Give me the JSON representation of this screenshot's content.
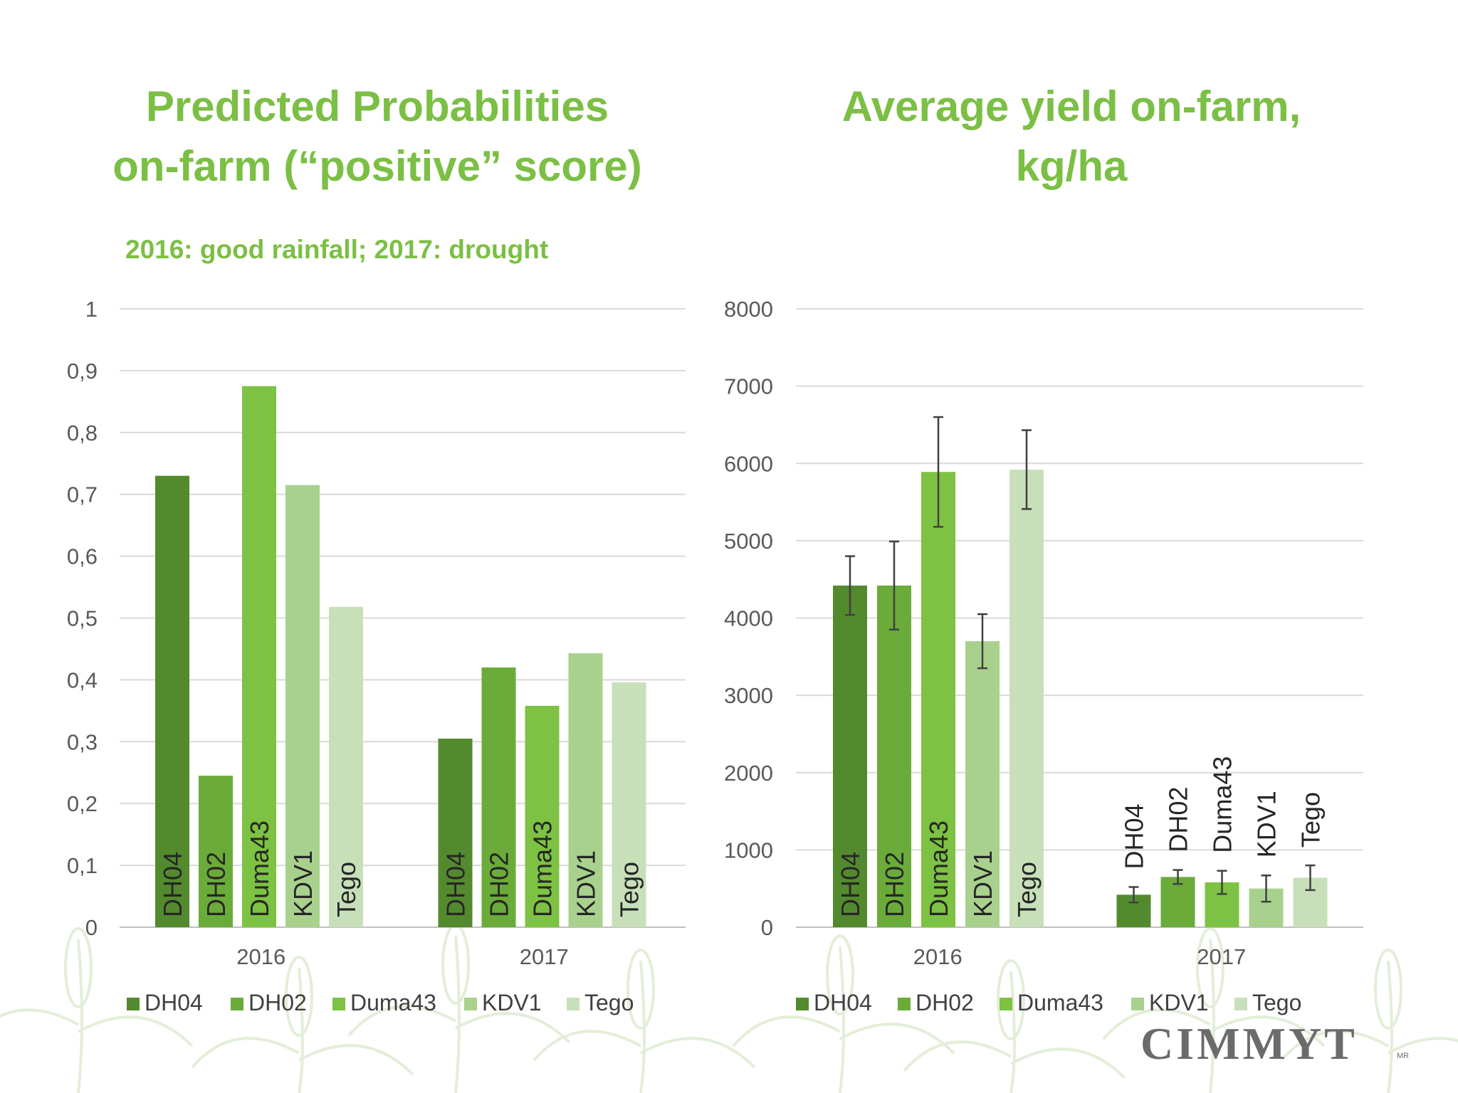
{
  "slide": {
    "left_title_line1": "Predicted Probabilities",
    "left_title_line2": "on-farm (“positive” score)",
    "right_title_line1": "Average yield on-farm,",
    "right_title_line2": "kg/ha",
    "subtitle": "2016: good rainfall; 2017: drought",
    "logo_text": "CIMMYT",
    "logo_mark": "MR"
  },
  "colors": {
    "title": "#7bbf44",
    "series": [
      "#548a2e",
      "#6aab39",
      "#7dc242",
      "#a9d18e",
      "#c7e0b9"
    ]
  },
  "chart_data": [
    {
      "type": "bar",
      "categories": [
        "2016",
        "2017"
      ],
      "series": [
        {
          "name": "DH04",
          "values": [
            0.73,
            0.305
          ]
        },
        {
          "name": "DH02",
          "values": [
            0.245,
            0.42
          ]
        },
        {
          "name": "Duma43",
          "values": [
            0.875,
            0.358
          ]
        },
        {
          "name": "KDV1",
          "values": [
            0.715,
            0.443
          ]
        },
        {
          "name": "Tego",
          "values": [
            0.518,
            0.396
          ]
        }
      ],
      "yticks": [
        "0",
        "0,1",
        "0,2",
        "0,3",
        "0,4",
        "0,5",
        "0,6",
        "0,7",
        "0,8",
        "0,9",
        "1"
      ],
      "ylim": [
        0,
        1
      ],
      "grid": true,
      "legend": "bottom",
      "bar_labels": "inside-bottom"
    },
    {
      "type": "bar",
      "categories": [
        "2016",
        "2017"
      ],
      "series": [
        {
          "name": "DH04",
          "values": [
            4420,
            420
          ],
          "error": [
            380,
            100
          ]
        },
        {
          "name": "DH02",
          "values": [
            4420,
            650
          ],
          "error": [
            570,
            90
          ]
        },
        {
          "name": "Duma43",
          "values": [
            5890,
            580
          ],
          "error": [
            710,
            150
          ]
        },
        {
          "name": "KDV1",
          "values": [
            3700,
            500
          ],
          "error": [
            350,
            170
          ]
        },
        {
          "name": "Tego",
          "values": [
            5920,
            640
          ],
          "error": [
            510,
            160
          ]
        }
      ],
      "yticks": [
        "0",
        "1000",
        "2000",
        "3000",
        "4000",
        "5000",
        "6000",
        "7000",
        "8000"
      ],
      "ylim": [
        0,
        8000
      ],
      "grid": true,
      "legend": "bottom",
      "bar_labels": "inside-bottom (2016), above error bars (2017)"
    }
  ]
}
